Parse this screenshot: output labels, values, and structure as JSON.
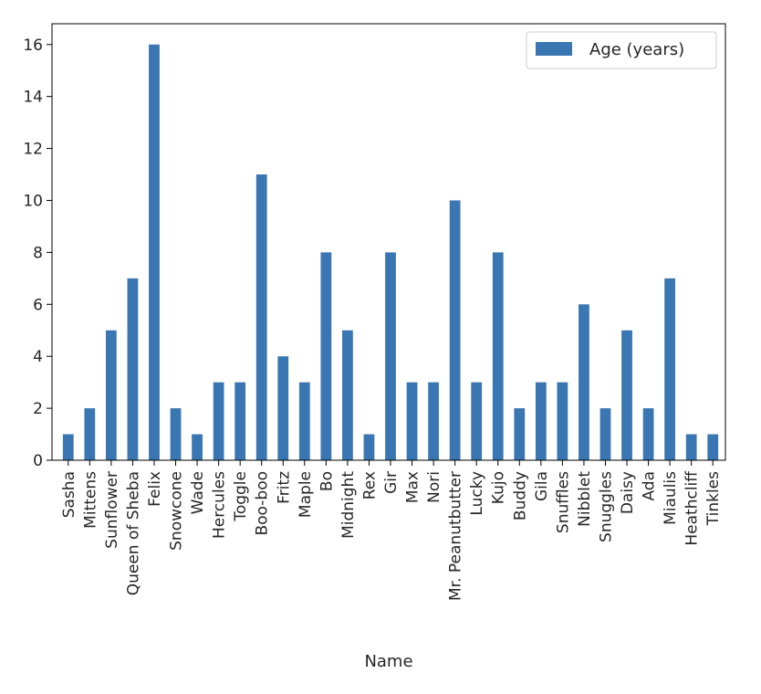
{
  "chart_data": {
    "type": "bar",
    "xlabel": "Name",
    "ylabel": "",
    "ylim": [
      0,
      16.8
    ],
    "yticks": [
      0,
      2,
      4,
      6,
      8,
      10,
      12,
      14,
      16
    ],
    "legend_position": "top-right",
    "grid": false,
    "categories": [
      "Sasha",
      "Mittens",
      "Sunflower",
      "Queen of Sheba",
      "Felix",
      "Snowcone",
      "Wade",
      "Hercules",
      "Toggle",
      "Boo-boo",
      "Fritz",
      "Maple",
      "Bo",
      "Midnight",
      "Rex",
      "Gir",
      "Max",
      "Nori",
      "Mr. Peanutbutter",
      "Lucky",
      "Kujo",
      "Buddy",
      "Gila",
      "Snuffles",
      "Nibblet",
      "Snuggles",
      "Daisy",
      "Ada",
      "Miaulis",
      "Heathcliff",
      "Tinkles"
    ],
    "series": [
      {
        "name": "Age (years)",
        "color": "#3a76b1",
        "values": [
          1,
          2,
          5,
          7,
          16,
          2,
          1,
          3,
          3,
          11,
          4,
          3,
          8,
          5,
          1,
          8,
          3,
          3,
          10,
          3,
          8,
          2,
          3,
          3,
          6,
          2,
          5,
          2,
          7,
          1,
          1
        ]
      }
    ]
  }
}
